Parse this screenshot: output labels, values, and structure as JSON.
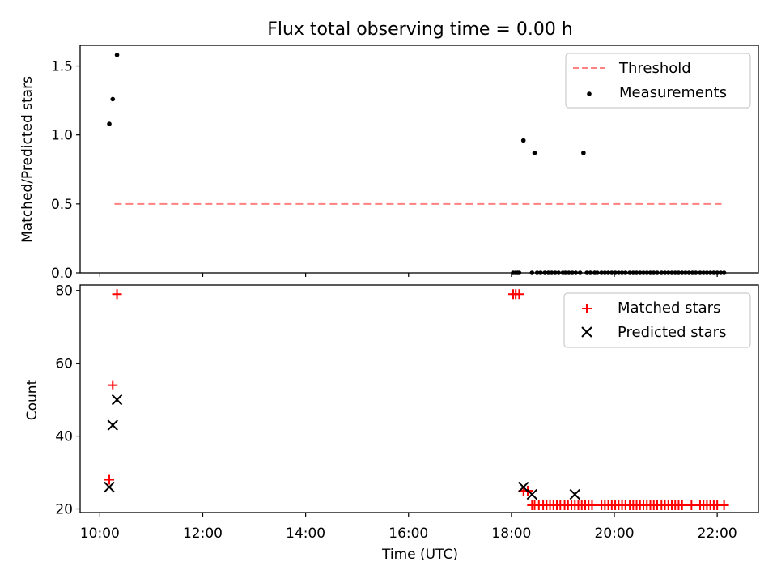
{
  "title": "Flux total observing time = 0.00 h",
  "colors": {
    "matched": "#ff0000",
    "predicted": "#000000",
    "threshold": "#ff8080",
    "measurement": "#000000"
  },
  "chart_data": [
    {
      "type": "scatter",
      "ylabel": "Matched/Predicted stars",
      "xlim": [
        "09:37",
        "22:48"
      ],
      "ylim": [
        0,
        1.65
      ],
      "grid": false,
      "legend_position": "top-right",
      "yticks": [
        0.0,
        0.5,
        1.0,
        1.5
      ],
      "series": [
        {
          "name": "Threshold",
          "kind": "dashed-line",
          "color": "#ff8080",
          "x": [
            "10:17",
            "22:05"
          ],
          "y": [
            0.5,
            0.5
          ]
        },
        {
          "name": "Measurements",
          "kind": "points",
          "color": "#000000",
          "x": [
            "10:11",
            "10:15",
            "10:20",
            "18:02",
            "18:05",
            "18:07",
            "18:09",
            "18:14",
            "18:24",
            "18:27",
            "18:30",
            "18:34",
            "18:39",
            "18:43",
            "18:47",
            "18:51",
            "18:55",
            "19:00",
            "19:03",
            "19:07",
            "19:11",
            "19:15",
            "19:20",
            "19:24",
            "19:28",
            "19:32",
            "19:37",
            "19:40",
            "19:45",
            "19:49",
            "19:53",
            "19:57",
            "20:01",
            "20:05",
            "20:09",
            "20:13",
            "20:18",
            "20:22",
            "20:26",
            "20:30",
            "20:34",
            "20:38",
            "20:42",
            "20:46",
            "20:50",
            "20:55",
            "20:59",
            "21:03",
            "21:07",
            "21:11",
            "21:15",
            "21:19",
            "21:23",
            "21:27",
            "21:31",
            "21:35",
            "21:40",
            "21:44",
            "21:48",
            "21:52",
            "21:56",
            "22:00",
            "22:04",
            "22:08"
          ],
          "y": [
            1.08,
            1.26,
            1.58,
            0,
            0,
            0,
            0,
            0.96,
            0,
            0.87,
            0,
            0,
            0,
            0,
            0,
            0,
            0,
            0,
            0,
            0,
            0,
            0,
            0,
            0.87,
            0,
            0,
            0,
            0,
            0,
            0,
            0,
            0,
            0,
            0,
            0,
            0,
            0,
            0,
            0,
            0,
            0,
            0,
            0,
            0,
            0,
            0,
            0,
            0,
            0,
            0,
            0,
            0,
            0,
            0,
            0,
            0,
            0,
            0,
            0,
            0,
            0,
            0,
            0,
            0
          ]
        }
      ]
    },
    {
      "type": "scatter",
      "xlabel": "Time (UTC)",
      "ylabel": "Count",
      "xlim": [
        "09:37",
        "22:48"
      ],
      "ylim": [
        19,
        81.5
      ],
      "grid": false,
      "legend_position": "top-right",
      "yticks": [
        20,
        40,
        60,
        80
      ],
      "xticks": [
        "10:00",
        "12:00",
        "14:00",
        "16:00",
        "18:00",
        "20:00",
        "22:00"
      ],
      "series": [
        {
          "name": "Matched stars",
          "marker": "+",
          "color": "#ff0000",
          "x": [
            "10:11",
            "10:15",
            "10:20",
            "18:02",
            "18:05",
            "18:09",
            "18:14",
            "18:19",
            "18:24",
            "18:27",
            "18:32",
            "18:37",
            "18:41",
            "18:45",
            "18:49",
            "18:53",
            "18:57",
            "19:02",
            "19:06",
            "19:10",
            "19:14",
            "19:18",
            "19:22",
            "19:26",
            "19:30",
            "19:34",
            "19:45",
            "19:49",
            "19:53",
            "19:57",
            "20:01",
            "20:05",
            "20:09",
            "20:13",
            "20:18",
            "20:22",
            "20:26",
            "20:30",
            "20:34",
            "20:38",
            "20:42",
            "20:46",
            "20:50",
            "20:55",
            "20:59",
            "21:03",
            "21:07",
            "21:11",
            "21:15",
            "21:19",
            "21:30",
            "21:40",
            "21:44",
            "21:48",
            "21:52",
            "21:56",
            "22:00",
            "22:08"
          ],
          "y": [
            28,
            54,
            79,
            79,
            79,
            79,
            25,
            25,
            21,
            21,
            21,
            21,
            21,
            21,
            21,
            21,
            21,
            21,
            21,
            21,
            21,
            21,
            21,
            21,
            21,
            21,
            21,
            21,
            21,
            21,
            21,
            21,
            21,
            21,
            21,
            21,
            21,
            21,
            21,
            21,
            21,
            21,
            21,
            21,
            21,
            21,
            21,
            21,
            21,
            21,
            21,
            21,
            21,
            21,
            21,
            21,
            21,
            21
          ]
        },
        {
          "name": "Predicted stars",
          "marker": "x",
          "color": "#000000",
          "x": [
            "10:11",
            "10:15",
            "10:20",
            "18:14",
            "18:24",
            "19:14"
          ],
          "y": [
            26,
            43,
            50,
            26,
            24,
            24
          ]
        }
      ]
    }
  ]
}
